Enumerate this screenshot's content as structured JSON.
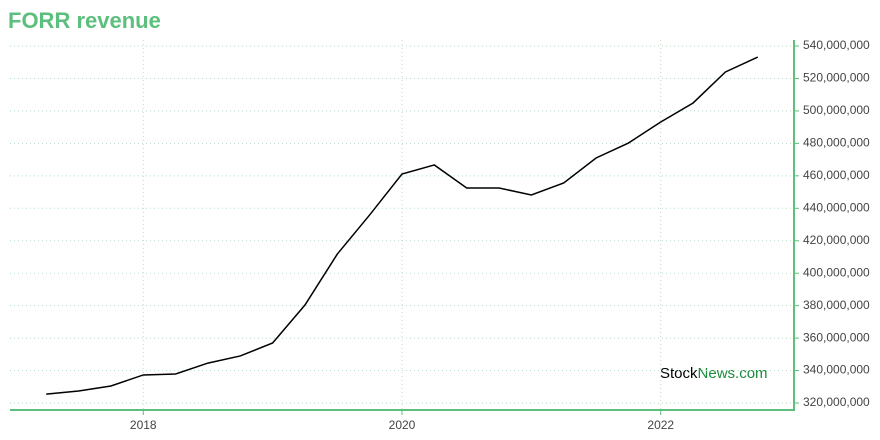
{
  "chart_data": {
    "type": "line",
    "title": "FORR revenue",
    "watermark": [
      "Stock",
      "News.com"
    ],
    "x": [
      2017.25,
      2017.5,
      2017.75,
      2018,
      2018.25,
      2018.5,
      2018.75,
      2019,
      2019.25,
      2019.5,
      2019.75,
      2020,
      2020.25,
      2020.5,
      2020.75,
      2021,
      2021.25,
      2021.5,
      2021.75,
      2022,
      2022.25,
      2022.5,
      2022.75
    ],
    "series": [
      {
        "name": "revenue",
        "color": "#000000",
        "values": [
          325500000,
          327400000,
          330500000,
          337300000,
          337900000,
          344600000,
          349000000,
          357000000,
          380400000,
          411800000,
          435900000,
          461100000,
          466700000,
          452500000,
          452500000,
          448200000,
          455600000,
          471000000,
          480200000,
          493200000,
          504900000,
          524000000,
          533200000
        ]
      }
    ],
    "xlim": [
      2016.97,
      2023.03
    ],
    "xticks": [
      2018,
      2020,
      2022
    ],
    "ylim": [
      315700000,
      543700000
    ],
    "yticks": [
      {
        "value": 320000000,
        "label": "320,000,000"
      },
      {
        "value": 340000000,
        "label": "340,000,000"
      },
      {
        "value": 360000000,
        "label": "360,000,000"
      },
      {
        "value": 380000000,
        "label": "380,000,000"
      },
      {
        "value": 400000000,
        "label": "400,000,000"
      },
      {
        "value": 420000000,
        "label": "420,000,000"
      },
      {
        "value": 440000000,
        "label": "440,000,000"
      },
      {
        "value": 460000000,
        "label": "460,000,000"
      },
      {
        "value": 480000000,
        "label": "480,000,000"
      },
      {
        "value": 500000000,
        "label": "500,000,000"
      },
      {
        "value": 520000000,
        "label": "520,000,000"
      },
      {
        "value": 540000000,
        "label": "540,000,000"
      }
    ],
    "grid": true,
    "axis_color": "#5cbf7d"
  }
}
